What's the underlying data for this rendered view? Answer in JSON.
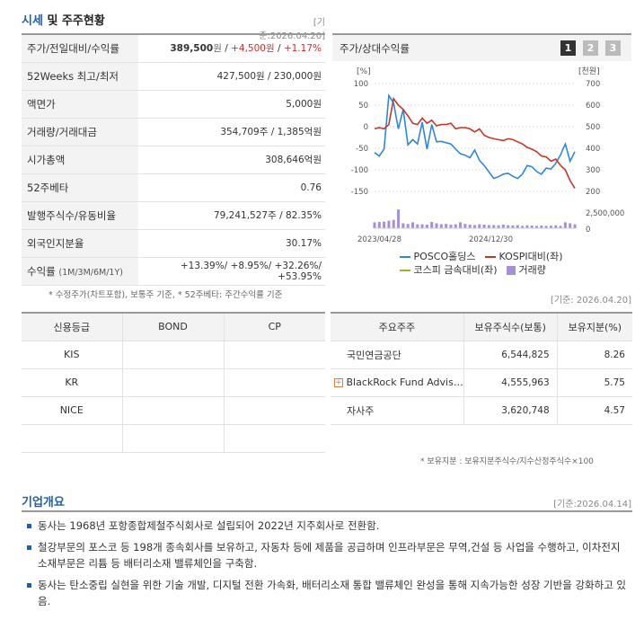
{
  "market": {
    "title_main": "시세",
    "title_rest": " 및 주주현황",
    "date": "[기준:2026.04.20]",
    "rows": [
      {
        "label": "주가/전일대비/수익률",
        "v1": "389,500",
        "u1": "원",
        "sep1": " / ",
        "v2": "+4,500",
        "u2": "원",
        "sep2": " / ",
        "v3": "+1.17%"
      },
      {
        "label": "52Weeks 최고/최저",
        "value": "427,500원 / 230,000원"
      },
      {
        "label": "액면가",
        "value": "5,000원"
      },
      {
        "label": "거래량/거래대금",
        "value": "354,709주 / 1,385억원"
      },
      {
        "label": "시가총액",
        "value": "308,646억원"
      },
      {
        "label": "52주베타",
        "value": "0.76"
      },
      {
        "label": "발행주식수/유동비율",
        "value": "79,241,527주 / 82.35%"
      },
      {
        "label": "외국인지분율",
        "value": "30.17%"
      },
      {
        "label": "수익률",
        "label_sub": "(1M/3M/6M/1Y)",
        "value": "+13.39%/ +8.95%/ +32.26%/ +53.95%"
      }
    ],
    "note": "* 수정주가(차트포함), 보통주 기준, * 52주베타: 주간수익률 기준"
  },
  "chart": {
    "title": "주가/상대수익률",
    "tabs": [
      "1",
      "2",
      "3"
    ],
    "left_unit": "[%]",
    "right_unit": "[천원]",
    "left_ticks": [
      "100",
      "50",
      "0",
      "-50",
      "-100",
      "-150"
    ],
    "right_ticks": [
      "700",
      "600",
      "500",
      "400",
      "300",
      "200"
    ],
    "volume_tick_top": "2,500,000",
    "volume_tick_bottom": "0",
    "x_ticks": [
      "2023/04/28",
      "2024/12/30"
    ],
    "legend": [
      {
        "name": "POSCO홀딩스",
        "color": "#2e86de"
      },
      {
        "name": "KOSPI대비(좌)",
        "color": "#c0392b"
      },
      {
        "name": "코스피 금속대비(좌)",
        "color": "#9ab22a"
      },
      {
        "name": "거래량",
        "color": "#a58fd8"
      }
    ],
    "date": "[기준: 2026.04.20]"
  },
  "chart_data": {
    "type": "line",
    "series": [
      {
        "name": "POSCO홀딩스",
        "color": "#2e86de",
        "values": [
          -60,
          -68,
          -52,
          72,
          55,
          -5,
          40,
          -42,
          -30,
          -40,
          10,
          -52,
          5,
          -35,
          -34,
          -37,
          -40,
          -52,
          -63,
          -66,
          -72,
          -54,
          -78,
          -90,
          -105,
          -120,
          -116,
          -110,
          -108,
          -115,
          -120,
          -110,
          -90,
          -93,
          -104,
          -110,
          -96,
          -98,
          -85,
          -65,
          -40,
          -80,
          -58
        ]
      },
      {
        "name": "KOSPI대비(좌)",
        "color": "#c0392b",
        "values": [
          -5,
          -2,
          -5,
          5,
          65,
          50,
          40,
          25,
          8,
          5,
          20,
          8,
          15,
          2,
          5,
          5,
          8,
          -5,
          -2,
          -2,
          -5,
          -12,
          -5,
          -20,
          -25,
          -28,
          -30,
          -32,
          -28,
          -30,
          -35,
          -40,
          -48,
          -52,
          -58,
          -68,
          -70,
          -80,
          -75,
          -90,
          -100,
          -125,
          -143
        ]
      }
    ],
    "volume": [
      0.3,
      0.32,
      0.33,
      0.38,
      0.42,
      0.95,
      0.25,
      0.22,
      0.3,
      0.2,
      0.2,
      0.18,
      0.32,
      0.25,
      0.2,
      0.22,
      0.18,
      0.2,
      0.3,
      0.22,
      0.18,
      0.16,
      0.2,
      0.18,
      0.16,
      0.16,
      0.15,
      0.18,
      0.15,
      0.14,
      0.16,
      0.12,
      0.15,
      0.14,
      0.12,
      0.14,
      0.12,
      0.13,
      0.15,
      0.12,
      0.3,
      0.25,
      0.2
    ]
  },
  "credit": {
    "headers": [
      "신용등급",
      "BOND",
      "CP"
    ],
    "rows": [
      [
        "KIS",
        "",
        ""
      ],
      [
        "KR",
        "",
        ""
      ],
      [
        "NICE",
        "",
        ""
      ],
      [
        "",
        "",
        ""
      ]
    ]
  },
  "holders": {
    "headers": [
      "주요주주",
      "보유주식수(보통)",
      "보유지분(%)"
    ],
    "rows": [
      {
        "name": "국민연금공단",
        "shares": "6,544,825",
        "pct": "8.26",
        "expand": false
      },
      {
        "name": "BlackRock Fund Advis…",
        "shares": "4,555,963",
        "pct": "5.75",
        "expand": true
      },
      {
        "name": "자사주",
        "shares": "3,620,748",
        "pct": "4.57",
        "expand": false
      }
    ],
    "note": "* 보유지분 : 보유지분주식수/지수산정주식수×100"
  },
  "overview": {
    "title": "기업개요",
    "date": "[기준:2026.04.14]",
    "items": [
      "동사는 1968년 포항종합제철주식회사로 설립되어 2022년 지주회사로 전환함.",
      "철강부문의 포스코 등 198개 종속회사를 보유하고, 자동차 등에 제품을 공급하며 인프라부문은 무역,건설 등 사업을 수행하고, 이차전지소재부문은 리튬 등 배터리소재 밸류체인을 구축함.",
      "동사는 탄소중립 실현을 위한 기술 개발, 디지털 전환 가속화, 배터리소재 통합 밸류체인 완성을 통해 지속가능한 성장 기반을 강화하고 있음."
    ]
  }
}
